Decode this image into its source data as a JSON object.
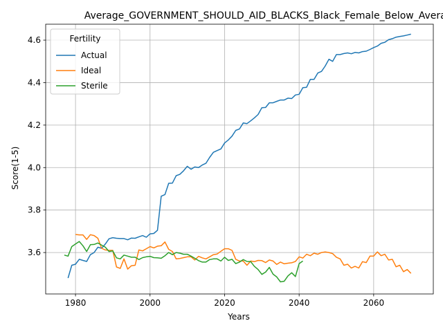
{
  "chart_data": {
    "type": "line",
    "title": "Average_GOVERNMENT_SHOULD_AID_BLACKS_Black_Female_Below_Average",
    "xlabel": "Years",
    "ylabel": "Score(1-5)",
    "xlim": [
      1972,
      2076
    ],
    "ylim": [
      3.405,
      4.675
    ],
    "xticks": [
      1980,
      2000,
      2020,
      2040,
      2060
    ],
    "yticks": [
      3.6,
      3.8,
      4.0,
      4.2,
      4.4,
      4.6
    ],
    "grid": true,
    "legend": {
      "title": "Fertility",
      "placement": "upper-left"
    },
    "series": [
      {
        "name": "Actual",
        "color": "#1f77b4",
        "x": [
          1978,
          1979,
          1980,
          1981,
          1982,
          1983,
          1984,
          1985,
          1986,
          1987,
          1988,
          1989,
          1990,
          1991,
          1992,
          1993,
          1994,
          1995,
          1996,
          1997,
          1998,
          1999,
          2000,
          2001,
          2002,
          2003,
          2004,
          2005,
          2006,
          2007,
          2008,
          2009,
          2010,
          2011,
          2012,
          2013,
          2014,
          2015,
          2016,
          2017,
          2018,
          2019,
          2020,
          2021,
          2022,
          2023,
          2024,
          2025,
          2026,
          2027,
          2028,
          2029,
          2030,
          2031,
          2032,
          2033,
          2034,
          2035,
          2036,
          2037,
          2038,
          2039,
          2040,
          2041,
          2042,
          2043,
          2044,
          2045,
          2046,
          2047,
          2048,
          2049,
          2050,
          2051,
          2052,
          2053,
          2054,
          2055,
          2056,
          2057,
          2058,
          2059,
          2060,
          2061,
          2062,
          2063,
          2064,
          2065,
          2066,
          2067,
          2068,
          2069,
          2070
        ],
        "y": [
          3.48,
          3.54,
          3.545,
          3.568,
          3.563,
          3.558,
          3.59,
          3.6,
          3.625,
          3.62,
          3.64,
          3.665,
          3.67,
          3.667,
          3.666,
          3.666,
          3.66,
          3.668,
          3.667,
          3.674,
          3.68,
          3.672,
          3.688,
          3.69,
          3.705,
          3.865,
          3.873,
          3.926,
          3.927,
          3.962,
          3.968,
          3.985,
          4.006,
          3.992,
          4.003,
          4.0,
          4.012,
          4.02,
          4.048,
          4.072,
          4.08,
          4.088,
          4.116,
          4.13,
          4.148,
          4.175,
          4.182,
          4.21,
          4.207,
          4.22,
          4.234,
          4.25,
          4.282,
          4.283,
          4.305,
          4.305,
          4.312,
          4.318,
          4.318,
          4.327,
          4.325,
          4.342,
          4.345,
          4.376,
          4.378,
          4.415,
          4.415,
          4.445,
          4.453,
          4.478,
          4.51,
          4.5,
          4.532,
          4.532,
          4.537,
          4.54,
          4.536,
          4.542,
          4.54,
          4.546,
          4.548,
          4.556,
          4.565,
          4.572,
          4.585,
          4.59,
          4.602,
          4.607,
          4.614,
          4.617,
          4.62,
          4.624,
          4.628
        ]
      },
      {
        "name": "Ideal",
        "color": "#ff7f0e",
        "x": [
          1980,
          1981,
          1982,
          1983,
          1984,
          1985,
          1986,
          1987,
          1988,
          1989,
          1990,
          1991,
          1992,
          1993,
          1994,
          1995,
          1996,
          1997,
          1998,
          1999,
          2000,
          2001,
          2002,
          2003,
          2004,
          2005,
          2006,
          2007,
          2008,
          2009,
          2010,
          2011,
          2012,
          2013,
          2014,
          2015,
          2016,
          2017,
          2018,
          2019,
          2020,
          2021,
          2022,
          2023,
          2024,
          2025,
          2026,
          2027,
          2028,
          2029,
          2030,
          2031,
          2032,
          2033,
          2034,
          2035,
          2036,
          2037,
          2038,
          2039,
          2040,
          2041,
          2042,
          2043,
          2044,
          2045,
          2046,
          2047,
          2048,
          2049,
          2050,
          2051,
          2052,
          2053,
          2054,
          2055,
          2056,
          2057,
          2058,
          2059,
          2060,
          2061,
          2062,
          2063,
          2064,
          2065,
          2066,
          2067,
          2068,
          2069,
          2070
        ],
        "y": [
          3.685,
          3.683,
          3.683,
          3.662,
          3.684,
          3.68,
          3.667,
          3.62,
          3.612,
          3.61,
          3.61,
          3.532,
          3.525,
          3.57,
          3.522,
          3.538,
          3.54,
          3.612,
          3.608,
          3.618,
          3.628,
          3.622,
          3.63,
          3.632,
          3.65,
          3.615,
          3.605,
          3.57,
          3.572,
          3.576,
          3.58,
          3.58,
          3.565,
          3.582,
          3.575,
          3.57,
          3.58,
          3.59,
          3.593,
          3.606,
          3.618,
          3.618,
          3.61,
          3.568,
          3.56,
          3.56,
          3.54,
          3.56,
          3.557,
          3.563,
          3.562,
          3.553,
          3.565,
          3.56,
          3.544,
          3.555,
          3.547,
          3.55,
          3.552,
          3.558,
          3.58,
          3.574,
          3.592,
          3.585,
          3.597,
          3.592,
          3.6,
          3.603,
          3.6,
          3.595,
          3.578,
          3.57,
          3.54,
          3.545,
          3.527,
          3.535,
          3.527,
          3.557,
          3.553,
          3.583,
          3.583,
          3.603,
          3.585,
          3.592,
          3.565,
          3.568,
          3.533,
          3.54,
          3.51,
          3.52,
          3.502
        ]
      },
      {
        "name": "Sterile",
        "color": "#2ca02c",
        "x": [
          1977,
          1978,
          1979,
          1980,
          1981,
          1982,
          1983,
          1984,
          1985,
          1986,
          1987,
          1988,
          1989,
          1990,
          1991,
          1992,
          1993,
          1994,
          1995,
          1996,
          1997,
          1998,
          1999,
          2000,
          2001,
          2002,
          2003,
          2004,
          2005,
          2006,
          2007,
          2008,
          2009,
          2010,
          2011,
          2012,
          2013,
          2014,
          2015,
          2016,
          2017,
          2018,
          2019,
          2020,
          2021,
          2022,
          2023,
          2024,
          2025,
          2026,
          2027,
          2028,
          2029,
          2030,
          2031,
          2032,
          2033,
          2034,
          2035,
          2036,
          2037,
          2038,
          2039,
          2040,
          2041
        ],
        "y": [
          3.588,
          3.583,
          3.628,
          3.64,
          3.652,
          3.632,
          3.605,
          3.637,
          3.638,
          3.645,
          3.635,
          3.625,
          3.605,
          3.608,
          3.575,
          3.57,
          3.588,
          3.583,
          3.578,
          3.578,
          3.567,
          3.576,
          3.58,
          3.582,
          3.576,
          3.575,
          3.573,
          3.585,
          3.6,
          3.59,
          3.6,
          3.597,
          3.592,
          3.592,
          3.583,
          3.573,
          3.562,
          3.555,
          3.555,
          3.567,
          3.57,
          3.57,
          3.56,
          3.578,
          3.563,
          3.568,
          3.548,
          3.555,
          3.567,
          3.558,
          3.557,
          3.535,
          3.52,
          3.497,
          3.508,
          3.53,
          3.498,
          3.485,
          3.462,
          3.465,
          3.49,
          3.505,
          3.487,
          3.548,
          3.56
        ]
      }
    ]
  }
}
